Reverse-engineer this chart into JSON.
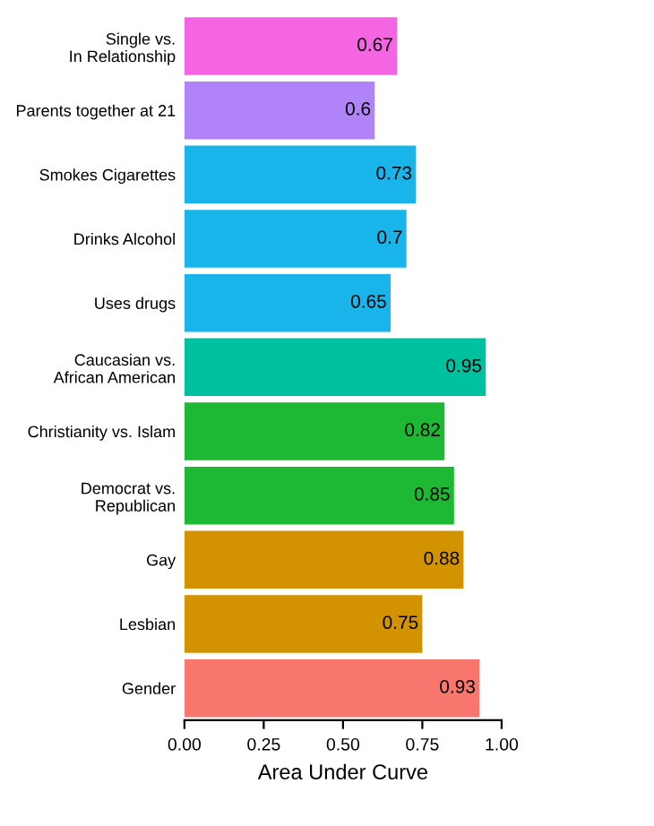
{
  "chart_data": {
    "type": "bar",
    "orientation": "horizontal",
    "xlabel": "Area Under Curve",
    "categories": [
      "Single vs.\nIn Relationship",
      "Parents together at 21",
      "Smokes Cigarettes",
      "Drinks Alcohol",
      "Uses drugs",
      "Caucasian vs.\nAfrican American",
      "Christianity vs. Islam",
      "Democrat vs.\nRepublican",
      "Gay",
      "Lesbian",
      "Gender"
    ],
    "values": [
      0.67,
      0.6,
      0.73,
      0.7,
      0.65,
      0.95,
      0.82,
      0.85,
      0.88,
      0.75,
      0.93
    ],
    "colors": [
      "#f564e3",
      "#b183f9",
      "#19b4ea",
      "#19b4ea",
      "#19b4ea",
      "#00c19f",
      "#1eb934",
      "#1eb934",
      "#d39200",
      "#d39200",
      "#f8766d"
    ],
    "xlim": [
      0,
      1.0
    ],
    "xticks": [
      {
        "value": 0,
        "label": "0.00"
      },
      {
        "value": 0.25,
        "label": "0.25"
      },
      {
        "value": 0.5,
        "label": "0.50"
      },
      {
        "value": 0.75,
        "label": "0.75"
      },
      {
        "value": 1.0,
        "label": "1.00"
      }
    ],
    "data_labels": true,
    "grid": false,
    "legend": false
  }
}
